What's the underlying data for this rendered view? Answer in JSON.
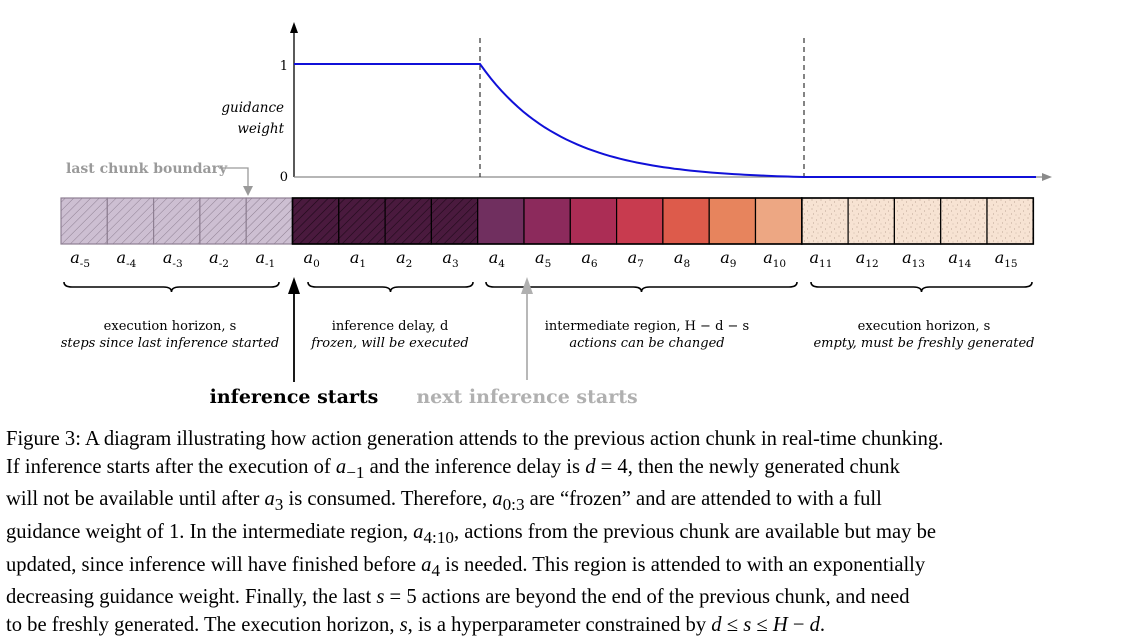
{
  "figure": {
    "y_axis": {
      "tick_1": "1",
      "tick_0": "0",
      "label_line1": "guidance",
      "label_line2": "weight"
    },
    "last_chunk_boundary": "last chunk boundary",
    "action_labels": [
      {
        "base": "a",
        "sub": "-5"
      },
      {
        "base": "a",
        "sub": "-4"
      },
      {
        "base": "a",
        "sub": "-3"
      },
      {
        "base": "a",
        "sub": "-2"
      },
      {
        "base": "a",
        "sub": "-1"
      },
      {
        "base": "a",
        "sub": "0"
      },
      {
        "base": "a",
        "sub": "1"
      },
      {
        "base": "a",
        "sub": "2"
      },
      {
        "base": "a",
        "sub": "3"
      },
      {
        "base": "a",
        "sub": "4"
      },
      {
        "base": "a",
        "sub": "5"
      },
      {
        "base": "a",
        "sub": "6"
      },
      {
        "base": "a",
        "sub": "7"
      },
      {
        "base": "a",
        "sub": "8"
      },
      {
        "base": "a",
        "sub": "9"
      },
      {
        "base": "a",
        "sub": "10"
      },
      {
        "base": "a",
        "sub": "11"
      },
      {
        "base": "a",
        "sub": "12"
      },
      {
        "base": "a",
        "sub": "13"
      },
      {
        "base": "a",
        "sub": "14"
      },
      {
        "base": "a",
        "sub": "15"
      }
    ],
    "intermediate_colors": [
      "#702f5f",
      "#8c2a5c",
      "#ab2d55",
      "#c83b4f",
      "#dd5b4b",
      "#e7845d",
      "#eda783"
    ],
    "frozen_color": "#4a1a3e",
    "past_color": "#cdbfd2",
    "future_color": "#f7e3d3",
    "curve_color": "#1010d8",
    "regions": [
      {
        "title": "execution horizon, s",
        "note": "steps since last inference started"
      },
      {
        "title": "inference delay, d",
        "note": "frozen, will be executed"
      },
      {
        "title": "intermediate region, H − d − s",
        "note": "actions can be changed"
      },
      {
        "title": "execution horizon, s",
        "note": "empty, must be freshly generated"
      }
    ],
    "inference_starts": "inference starts",
    "next_inference_starts": "next inference starts"
  },
  "caption": {
    "line1": "Figure 3: A diagram illustrating how action generation attends to the previous action chunk in real-time chunking.",
    "l2a": "If inference starts after the execution of ",
    "l2_var1": "a",
    "l2_sub1": "−1",
    "l2b": " and the inference delay is ",
    "l2_eq": "d",
    "l2c": " = 4, then the newly generated chunk",
    "l3a": "will not be available until after ",
    "l3_var": "a",
    "l3_sub": "3",
    "l3b": " is consumed. Therefore, ",
    "l3_var2": "a",
    "l3_sub2": "0:3",
    "l3c": " are “frozen” and are attended to with a full",
    "l4a": "guidance weight of 1. In the intermediate region, ",
    "l4_var": "a",
    "l4_sub": "4:10",
    "l4b": ", actions from the previous chunk are available but may be",
    "l5a": "updated, since inference will have finished before ",
    "l5_var": "a",
    "l5_sub": "4",
    "l5b": " is needed. This region is attended to with an exponentially",
    "l6a": "decreasing guidance weight. Finally, the last ",
    "l6_var": "s",
    "l6b": " = 5 actions are beyond the end of the previous chunk, and need",
    "l7a": "to be freshly generated. The execution horizon, ",
    "l7_var": "s",
    "l7b": ", is a hyperparameter constrained by ",
    "l7_d": "d",
    "l7_le1": " ≤ ",
    "l7_s": "s",
    "l7_le2": " ≤ ",
    "l7_H": "H",
    "l7_minus": " − ",
    "l7_d2": "d",
    "l7c": "."
  }
}
